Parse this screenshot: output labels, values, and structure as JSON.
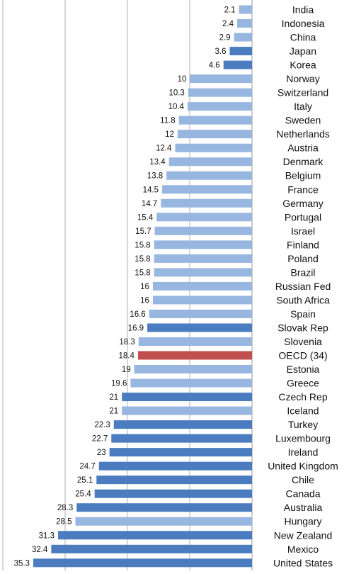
{
  "chart_data": {
    "type": "bar",
    "orientation": "horizontal",
    "categories": [
      "India",
      "Indonesia",
      "China",
      "Japan",
      "Korea",
      "Norway",
      "Switzerland",
      "Italy",
      "Sweden",
      "Netherlands",
      "Austria",
      "Denmark",
      "Belgium",
      "France",
      "Germany",
      "Portugal",
      "Israel",
      "Finland",
      "Poland",
      "Brazil",
      "Russian Fed",
      "South Africa",
      "Spain",
      "Slovak Rep",
      "Slovenia",
      "OECD (34)",
      "Estonia",
      "Greece",
      "Czech Rep",
      "Iceland",
      "Turkey",
      "Luxembourg",
      "Ireland",
      "United Kingdom",
      "Chile",
      "Canada",
      "Australia",
      "Hungary",
      "New Zealand",
      "Mexico",
      "United States"
    ],
    "values": [
      2.1,
      2.4,
      2.9,
      3.6,
      4.6,
      10,
      10.3,
      10.4,
      11.8,
      12,
      12.4,
      13.4,
      13.8,
      14.5,
      14.7,
      15.4,
      15.7,
      15.8,
      15.8,
      15.8,
      16,
      16,
      16.6,
      16.9,
      18.3,
      18.4,
      19,
      19.6,
      21,
      21,
      22.3,
      22.7,
      23,
      24.7,
      25.1,
      25.4,
      28.3,
      28.5,
      31.3,
      32.4,
      35.3
    ],
    "value_labels": [
      "2.1",
      "2.4",
      "2.9",
      "3.6",
      "4.6",
      "10",
      "10.3",
      "10.4",
      "11.8",
      "12",
      "12.4",
      "13.4",
      "13.8",
      "14.5",
      "14.7",
      "15.4",
      "15.7",
      "15.8",
      "15.8",
      "15.8",
      "16",
      "16",
      "16.6",
      "16.9",
      "18.3",
      "18.4",
      "19",
      "19.6",
      "21",
      "21",
      "22.3",
      "22.7",
      "23",
      "24.7",
      "25.1",
      "25.4",
      "28.3",
      "28.5",
      "31.3",
      "32.4",
      "35.3"
    ],
    "bar_style": [
      "light",
      "light",
      "light",
      "dark",
      "dark",
      "light",
      "light",
      "light",
      "light",
      "light",
      "light",
      "light",
      "light",
      "light",
      "light",
      "light",
      "light",
      "light",
      "light",
      "light",
      "light",
      "light",
      "light",
      "dark",
      "light",
      "highlight",
      "light",
      "light",
      "dark",
      "light",
      "dark",
      "dark",
      "dark",
      "dark",
      "dark",
      "dark",
      "dark",
      "light",
      "dark",
      "dark",
      "dark"
    ],
    "colors": {
      "light": "#97b6e0",
      "dark": "#4a7cbf",
      "highlight": "#c0504d",
      "grid": "#b0b0b0"
    },
    "xlim": [
      0,
      35.3
    ],
    "grid": true,
    "direction": "bars extend leftward from axis on right"
  }
}
